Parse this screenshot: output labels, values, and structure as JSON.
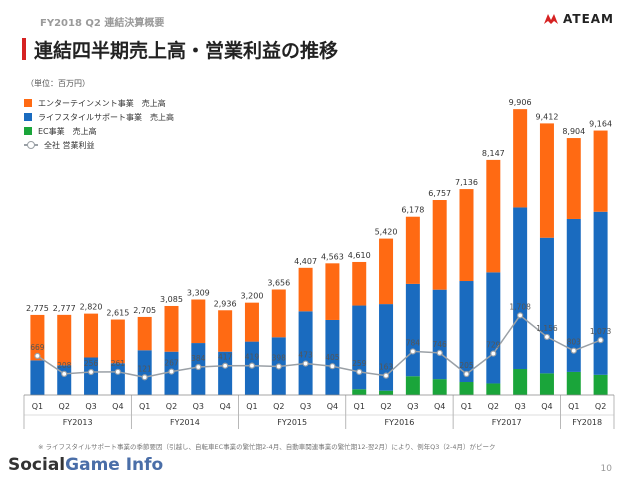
{
  "header": {
    "subtitle": "FY2018 Q2 連結決算概要",
    "title": "連結四半期売上高・営業利益の推移",
    "logo_text": "ATEAM"
  },
  "unit_note": "（単位：百万円）",
  "legend": {
    "ent": "エンターテインメント事業　売上高",
    "life": "ライフスタイルサポート事業　売上高",
    "ec": "EC事業　売上高",
    "op": "全社 営業利益"
  },
  "colors": {
    "ent": "#ff6a13",
    "life": "#1a6bbf",
    "ec": "#1aa53a",
    "op": "#9aa0a6",
    "brand": "#d62222"
  },
  "footnote": "※ ライフスタイルサポート事業の季節要因（引越し、自転車EC事業の繁忙期2-4月、自動車関連事業の繁忙期12-翌2月）により、例年Q3（2-4月）がピーク",
  "footer": {
    "brand_a": "Social",
    "brand_b": "Game Info",
    "page": "10"
  },
  "chart_data": {
    "type": "bar",
    "stacked": true,
    "categories": [
      "Q1",
      "Q2",
      "Q3",
      "Q4",
      "Q1",
      "Q2",
      "Q3",
      "Q4",
      "Q1",
      "Q2",
      "Q3",
      "Q4",
      "Q1",
      "Q2",
      "Q3",
      "Q4",
      "Q1",
      "Q2",
      "Q3",
      "Q4",
      "Q1",
      "Q2"
    ],
    "years": [
      {
        "label": "FY2013",
        "quarters": 4
      },
      {
        "label": "FY2014",
        "quarters": 4
      },
      {
        "label": "FY2015",
        "quarters": 4
      },
      {
        "label": "FY2016",
        "quarters": 4
      },
      {
        "label": "FY2017",
        "quarters": 4
      },
      {
        "label": "FY2018",
        "quarters": 2
      }
    ],
    "totals_display": [
      "2,775",
      "2,777",
      "2,820",
      "2,615",
      "2,705",
      "3,085",
      "3,309",
      "2,936",
      "3,200",
      "3,656",
      "4,407",
      "4,563",
      "4,610",
      "5,420",
      "6,178",
      "6,757",
      "7,136",
      "8,147",
      "9,906",
      "9,412",
      "8,904",
      "9,164"
    ],
    "series": [
      {
        "name": "EC事業　売上高",
        "key": "ec",
        "values": [
          0,
          0,
          0,
          0,
          0,
          0,
          0,
          0,
          0,
          0,
          0,
          0,
          200,
          150,
          650,
          550,
          450,
          400,
          900,
          750,
          800,
          700
        ]
      },
      {
        "name": "ライフスタイルサポート事業　売上高",
        "key": "life",
        "values": [
          1200,
          1030,
          1300,
          1100,
          1550,
          1500,
          1800,
          1500,
          1850,
          2000,
          2900,
          2600,
          2900,
          3000,
          3200,
          3100,
          3500,
          3850,
          5600,
          4700,
          5300,
          5650
        ]
      },
      {
        "name": "エンターテインメント事業　売上高",
        "key": "ent",
        "values": [
          1575,
          1747,
          1520,
          1515,
          1155,
          1585,
          1509,
          1436,
          1350,
          1656,
          1507,
          1963,
          1510,
          2270,
          2328,
          3107,
          3186,
          3897,
          3406,
          3962,
          2804,
          2814
        ]
      },
      {
        "name": "全社 営業利益",
        "key": "op",
        "type": "line",
        "values": [
          669,
          208,
          256,
          261,
          121,
          267,
          384,
          417,
          419,
          398,
          473,
          405,
          259,
          163,
          784,
          746,
          205,
          729,
          1708,
          1156,
          803,
          1073
        ],
        "display": [
          "669",
          "208",
          "256",
          "261",
          "121",
          "267",
          "384",
          "417",
          "419",
          "398",
          "473",
          "405",
          "259",
          "163",
          "784",
          "746",
          "205",
          "729",
          "1,708",
          "1,156",
          "803",
          "1,073"
        ]
      }
    ],
    "ylim": [
      0,
      10500
    ]
  }
}
